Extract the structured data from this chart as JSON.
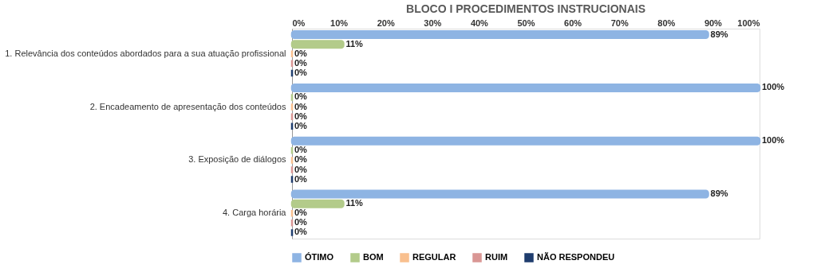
{
  "chart_data": {
    "type": "bar",
    "orientation": "horizontal",
    "title": "BLOCO I PROCEDIMENTOS INSTRUCIONAIS",
    "categories": [
      "1. Relevância dos conteúdos abordados para a sua atuação profissional",
      "2. Encadeamento de apresentação dos conteúdos",
      "3. Exposição de diálogos",
      "4. Carga horária"
    ],
    "series": [
      {
        "name": "ÓTIMO",
        "color": "#8eb4e3",
        "values": [
          89,
          100,
          100,
          89
        ],
        "value_labels": [
          "89%",
          "100%",
          "100%",
          "89%"
        ]
      },
      {
        "name": "BOM",
        "color": "#b3cb8a",
        "values": [
          11,
          0,
          0,
          11
        ],
        "value_labels": [
          "11%",
          "0%",
          "0%",
          "11%"
        ]
      },
      {
        "name": "REGULAR",
        "color": "#f9c08f",
        "values": [
          0,
          0,
          0,
          0
        ],
        "value_labels": [
          "0%",
          "0%",
          "0%",
          "0%"
        ]
      },
      {
        "name": "RUIM",
        "color": "#d99694",
        "values": [
          0,
          0,
          0,
          0
        ],
        "value_labels": [
          "0%",
          "0%",
          "0%",
          "0%"
        ]
      },
      {
        "name": "NÃO RESPONDEU",
        "color": "#1f3d6e",
        "values": [
          0,
          0,
          0,
          0
        ],
        "value_labels": [
          "0%",
          "0%",
          "0%",
          "0%"
        ]
      }
    ],
    "xlim": [
      0,
      100
    ],
    "xticks": [
      {
        "value": 0,
        "label": "0%"
      },
      {
        "value": 10,
        "label": "10%"
      },
      {
        "value": 20,
        "label": "20%"
      },
      {
        "value": 30,
        "label": "30%"
      },
      {
        "value": 40,
        "label": "40%"
      },
      {
        "value": 50,
        "label": "50%"
      },
      {
        "value": 60,
        "label": "60%"
      },
      {
        "value": 70,
        "label": "70%"
      },
      {
        "value": 80,
        "label": "80%"
      },
      {
        "value": 90,
        "label": "90%"
      },
      {
        "value": 100,
        "label": "100%"
      }
    ],
    "grid": false,
    "legend": "bottom"
  }
}
